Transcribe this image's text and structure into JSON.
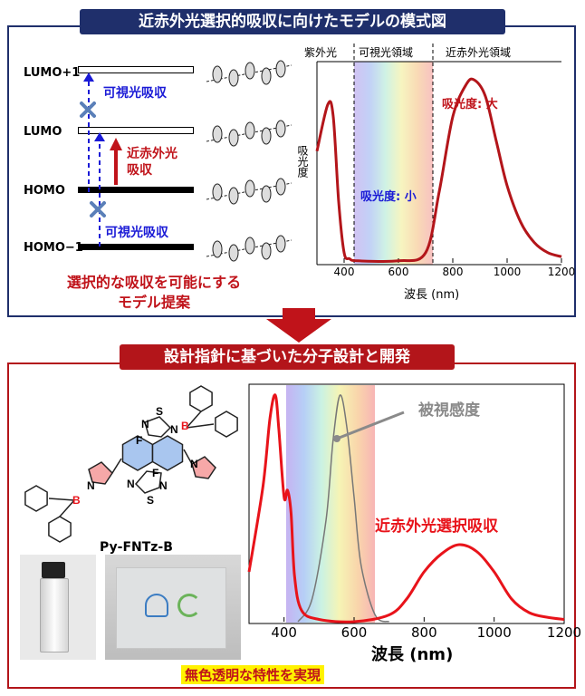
{
  "top": {
    "title": "近赤外光選択的吸収に向けたモデルの模式図",
    "levels": {
      "lumo1": "LUMO+1",
      "lumo": "LUMO",
      "homo": "HOMO",
      "homo1": "HOMO−1"
    },
    "arrows": {
      "visible_upper": "可視光吸収",
      "visible_lower": "可視光吸収",
      "nir_line1": "近赤外光",
      "nir_line2": "吸収"
    },
    "proposal_line1": "選択的な吸収を可能にする",
    "proposal_line2": "モデル提案",
    "spectrum": {
      "region_uv": "紫外光",
      "region_vis": "可視光領域",
      "region_nir": "近赤外光領域",
      "ylabel": "吸光度",
      "xlabel": "波長 (nm)",
      "label_large": "吸光度: 大",
      "label_small": "吸光度: 小",
      "xticks": [
        "400",
        "600",
        "800",
        "1000",
        "1200"
      ]
    }
  },
  "bottom": {
    "title": "設計指針に基づいた分子設計と開発",
    "molecule_name": "Py-FNTz-B",
    "atoms": {
      "s": "S",
      "n": "N",
      "b": "B",
      "f": "F"
    },
    "caption": "無色透明な特性を実現",
    "spectrum": {
      "label_sensitivity": "被視感度",
      "label_nir": "近赤外光選択吸収",
      "xlabel": "波長 (nm)",
      "xticks": [
        "400",
        "600",
        "800",
        "1000",
        "1200"
      ]
    }
  },
  "colors": {
    "navy": "#1f2f6b",
    "darkred": "#b3151a",
    "curve_red": "#e8131a",
    "blue_arrow": "#1a1ad6",
    "highlight": "#fff200"
  },
  "chart_data": [
    {
      "type": "line",
      "x_range": [
        300,
        1200
      ],
      "xticks": [
        400,
        600,
        800,
        1000,
        1200
      ],
      "series": [
        {
          "x": [
            300,
            340,
            360,
            380,
            400,
            420,
            450,
            600,
            700,
            750,
            800,
            850,
            880,
            920,
            960,
            1000,
            1050,
            1100,
            1150,
            1200
          ],
          "y": [
            0.55,
            0.78,
            0.72,
            0.3,
            0.05,
            0.02,
            0.01,
            0.01,
            0.05,
            0.35,
            0.72,
            0.88,
            0.9,
            0.82,
            0.6,
            0.38,
            0.2,
            0.1,
            0.05,
            0.03
          ]
        }
      ]
    },
    {
      "type": "line",
      "x_range": [
        300,
        1200
      ],
      "xticks": [
        400,
        600,
        800,
        1000,
        1200
      ],
      "series": [
        {
          "x": [
            300,
            340,
            360,
            375,
            385,
            400,
            410,
            420,
            430,
            450,
            500,
            600,
            700,
            750,
            800,
            850,
            900,
            950,
            1000,
            1050,
            1100,
            1150,
            1200
          ],
          "y": [
            0.22,
            0.6,
            0.9,
            1.0,
            0.85,
            0.55,
            0.58,
            0.48,
            0.2,
            0.05,
            0.01,
            0.0,
            0.03,
            0.1,
            0.22,
            0.3,
            0.34,
            0.31,
            0.22,
            0.1,
            0.04,
            0.02,
            0.01
          ]
        },
        {
          "x": [
            440,
            480,
            520,
            540,
            560,
            580,
            600,
            620,
            660,
            700
          ],
          "y": [
            0.0,
            0.1,
            0.45,
            0.8,
            1.0,
            0.85,
            0.55,
            0.25,
            0.03,
            0.0
          ]
        }
      ]
    }
  ]
}
